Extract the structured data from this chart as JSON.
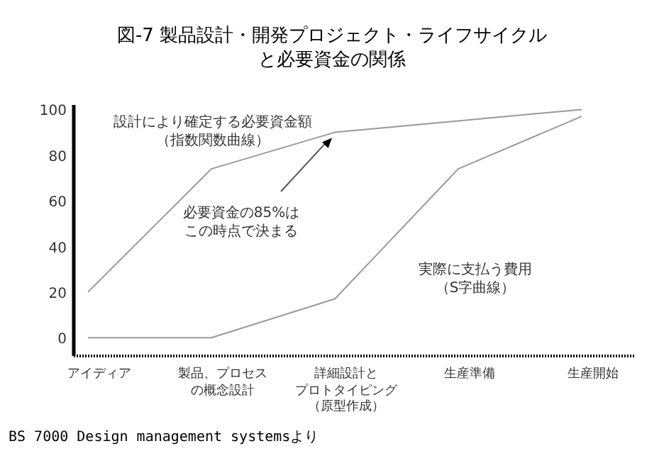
{
  "chart_data": {
    "type": "line",
    "title": "図-7 製品設計・開発プロジェクト・ライフサイクルと必要資金の関係",
    "categories": [
      "アイディア",
      "製品、プロセスの概念設計",
      "詳細設計とプロトタイピング（原型作成）",
      "生産準備",
      "生産開始"
    ],
    "series": [
      {
        "name": "設計により確定する必要資金額（指数関数曲線）",
        "color": "#999999",
        "values": [
          20,
          74,
          90,
          95,
          100
        ]
      },
      {
        "name": "実際に支払う費用（S字曲線）",
        "color": "#999999",
        "values": [
          0,
          0,
          17,
          74,
          97
        ]
      }
    ],
    "ylim": [
      -8,
      102
    ],
    "yticks": [
      0,
      20,
      40,
      60,
      80,
      100
    ],
    "grid": false,
    "legend": false,
    "marker": "none",
    "line_style": "solid",
    "annotations": [
      "必要資金の85%はこの時点で決まる",
      "BS 7000 Design management systemsより"
    ]
  }
}
